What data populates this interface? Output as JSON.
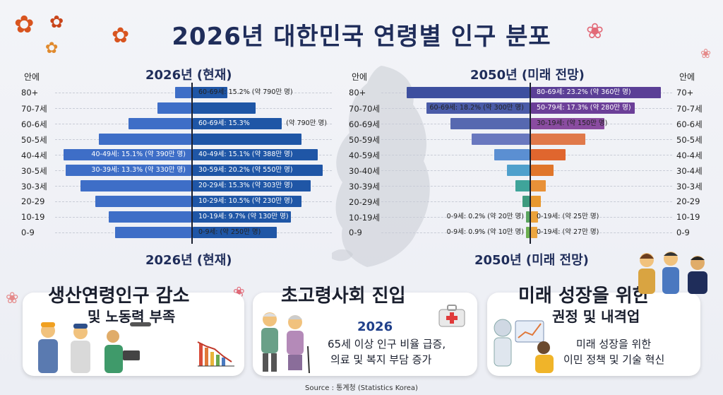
{
  "title": "2026년 대한민국 연령별 인구 분포",
  "source": "Source : 통계청 (Statistics Korea)",
  "chart_data": [
    {
      "type": "bar",
      "subtype": "population-pyramid",
      "title": "2026년 (현재)",
      "footer_title": "2026년 (현재)",
      "unit_header": "안에",
      "categories": [
        "80+",
        "70-7세",
        "60-6세",
        "50-5세",
        "40-4세",
        "30-5세",
        "30-3세",
        "20-29",
        "10-19",
        "0-9"
      ],
      "series": [
        {
          "name": "left",
          "values": [
            6.9,
            14.0,
            26.3,
            38.6,
            53.1,
            52.4,
            46.2,
            40.0,
            34.5,
            31.7
          ]
        },
        {
          "name": "right",
          "values": [
            14.5,
            26.2,
            37.1,
            45.3,
            52.1,
            54.2,
            49.0,
            45.3,
            40.9,
            34.9
          ]
        }
      ],
      "data_labels": {
        "left": [
          "",
          "",
          "",
          "",
          "40-49세: 15.1% (약 390만 명)",
          "30-39세: 13.3% (약 330만 명)",
          "",
          "",
          "",
          ""
        ],
        "right": [
          "60-69세: 15.2% (약 790만 명)",
          "",
          "60-69세: 15.3%",
          "",
          "40-49세: 15.1% (약 388만 명)",
          "30-59세: 20.2% (약 550만 명)",
          "20-29세: 15.3% (약 303만 명)",
          "10-29세: 10.5% (약 230만 명)",
          "10-19세: 9.7% (약 130만 명)",
          "0-9세: (약 250만 명)"
        ],
        "right_extra": [
          "",
          "",
          "(약 790만 명)",
          "",
          "",
          "",
          "",
          "",
          "",
          ""
        ]
      },
      "xlim": [
        0,
        55
      ]
    },
    {
      "type": "bar",
      "subtype": "population-pyramid",
      "title": "2050년 (미래 전망)",
      "footer_title": "2050년 (미래 전망)",
      "unit_header_left": "안에",
      "unit_header_right": "안에",
      "categories": [
        "80+",
        "70-70세",
        "60-69세",
        "50-59세",
        "40-59세",
        "30-40세",
        "30-39세",
        "20-29세",
        "10-19세",
        "0-9"
      ],
      "categories_right": [
        "70+",
        "70-7세",
        "60-6세",
        "50-5세",
        "40-4세",
        "30-4세",
        "30-3세",
        "20-29",
        "10-19",
        "0-9"
      ],
      "series": [
        {
          "name": "left",
          "values": [
            51.9,
            43.6,
            33.3,
            24.4,
            14.8,
            9.6,
            5.9,
            3.0,
            1.5,
            1.5
          ]
        },
        {
          "name": "right",
          "values": [
            55.0,
            44.0,
            31.0,
            23.1,
            14.6,
            9.6,
            6.4,
            4.1,
            3.0,
            2.6
          ]
        }
      ],
      "data_labels": {
        "left": [
          "",
          "60-69세: 18.2% (약 300만 명)",
          "",
          "",
          "",
          "",
          "",
          "",
          "0-9세: 0.2% (약 20만 명)",
          "0-9세: 0.9% (약 10만 명)"
        ],
        "right": [
          "80-69세: 23.2% (약 360만 명)",
          "50-79세: 17.3% (약 280만 명)",
          "30-19세: (약 150만 명)",
          "",
          "",
          "",
          "",
          "",
          "0-19세: (약 25만 명)",
          "0-19세: (약 27만 명)"
        ]
      },
      "colors_left": [
        "#3d4f9f",
        "#4a5ba8",
        "#5668b0",
        "#6978bf",
        "#5b8fd2",
        "#4fa0cc",
        "#3fa49a",
        "#3e9a7e",
        "#5aa55f",
        "#6cae4f"
      ],
      "colors_right": [
        "#5b3f96",
        "#6c3f98",
        "#8a4ca0",
        "#e0794a",
        "#e0662e",
        "#e0762b",
        "#e89138",
        "#e8982e",
        "#eba23a",
        "#eca640"
      ],
      "xlim": [
        0,
        55
      ]
    }
  ],
  "cards": [
    {
      "title": "생산연령인구 감소",
      "subtitle": "및 노동력 부족"
    },
    {
      "title": "초고령사회 진입",
      "year": "2026",
      "line1": "65세 이상 인구 비율 급증,",
      "line2": "의료 및 복지 부담 증가"
    },
    {
      "title": "미래 성장을 위한",
      "subtitle": "권정 및 내격업",
      "line1": "미래 성장을 위한",
      "line2": "이민 정책 및 기술 혁신"
    }
  ],
  "colors": {
    "title": "#1f2d5a",
    "bar_left_2026": "#3e6ec7",
    "bar_right_2026": "#1f56a6",
    "axis": "#1a1f2e"
  }
}
